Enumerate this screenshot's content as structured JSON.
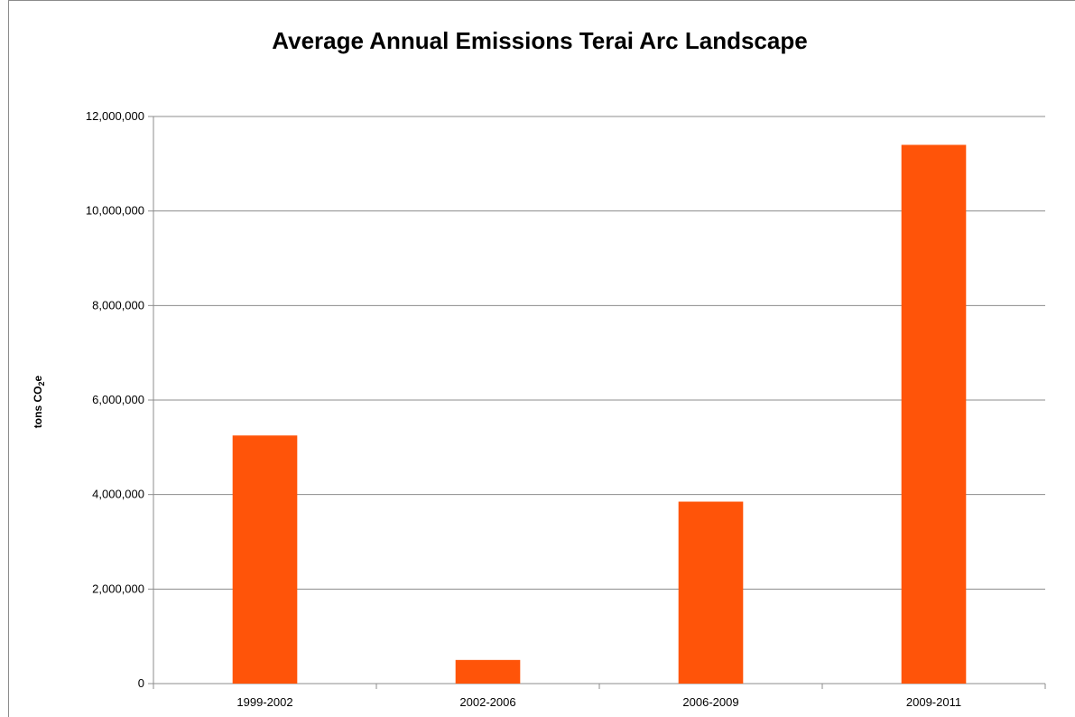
{
  "chart_data": {
    "type": "bar",
    "title": "Average Annual Emissions Terai Arc Landscape",
    "xlabel": "",
    "ylabel_main": "tons CO",
    "ylabel_sub": "2",
    "ylabel_tail": "e",
    "categories": [
      "1999-2002",
      "2002-2006",
      "2006-2009",
      "2009-2011"
    ],
    "values": [
      5250000,
      500000,
      3850000,
      11400000
    ],
    "ylim": [
      0,
      12000000
    ],
    "yticks": [
      0,
      2000000,
      4000000,
      6000000,
      8000000,
      10000000,
      12000000
    ],
    "ytick_labels": [
      "0",
      "2,000,000",
      "4,000,000",
      "6,000,000",
      "8,000,000",
      "10,000,000",
      "12,000,000"
    ],
    "grid": true,
    "legend": "none",
    "bar_color": "#FF5409"
  }
}
